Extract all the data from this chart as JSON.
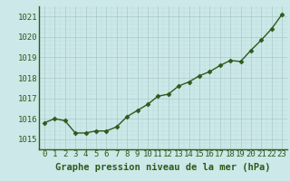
{
  "x": [
    0,
    1,
    2,
    3,
    4,
    5,
    6,
    7,
    8,
    9,
    10,
    11,
    12,
    13,
    14,
    15,
    16,
    17,
    18,
    19,
    20,
    21,
    22,
    23
  ],
  "y": [
    1015.8,
    1016.0,
    1015.9,
    1015.3,
    1015.3,
    1015.4,
    1015.4,
    1015.6,
    1016.1,
    1016.4,
    1016.7,
    1017.1,
    1017.2,
    1017.6,
    1017.8,
    1018.1,
    1018.3,
    1018.6,
    1018.85,
    1018.8,
    1019.35,
    1019.85,
    1020.4,
    1021.1
  ],
  "line_color": "#2d5a1b",
  "marker": "D",
  "marker_size": 2.5,
  "line_width": 1.0,
  "bg_color": "#cce8e8",
  "grid_major_color": "#aac8c8",
  "grid_minor_color": "#bbdada",
  "xlabel": "Graphe pression niveau de la mer (hPa)",
  "xlabel_color": "#2d5a1b",
  "xlabel_fontsize": 7.5,
  "tick_color": "#2d5a1b",
  "tick_fontsize": 6.5,
  "ylim": [
    1014.5,
    1021.5
  ],
  "yticks": [
    1015,
    1016,
    1017,
    1018,
    1019,
    1020,
    1021
  ],
  "xlim": [
    -0.5,
    23.5
  ],
  "xticks": [
    0,
    1,
    2,
    3,
    4,
    5,
    6,
    7,
    8,
    9,
    10,
    11,
    12,
    13,
    14,
    15,
    16,
    17,
    18,
    19,
    20,
    21,
    22,
    23
  ]
}
